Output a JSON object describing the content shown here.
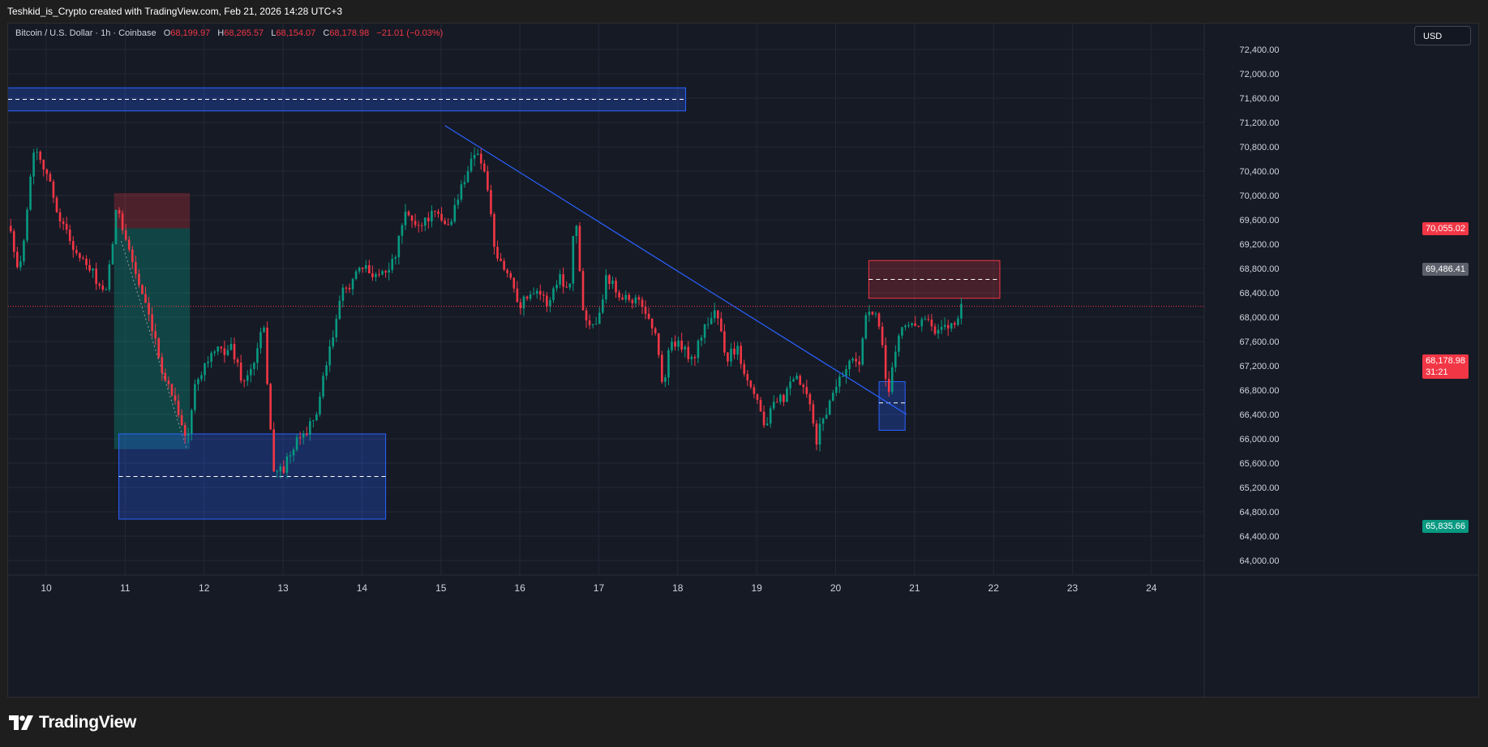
{
  "header": {
    "attribution": "Teshkid_is_Crypto created with TradingView.com, Feb 21, 2026 14:28 UTC+3"
  },
  "legend": {
    "symbol": "Bitcoin / U.S. Dollar · 1h · Coinbase",
    "open_label": "O",
    "open": "68,199.97",
    "high_label": "H",
    "high": "68,265.57",
    "low_label": "L",
    "low": "68,154.07",
    "close_label": "C",
    "close": "68,178.98",
    "change": "−21.01 (−0.03%)"
  },
  "currency_button": "USD",
  "price_tags": {
    "tag_70055": "70,055.02",
    "tag_69486": "69,486.41",
    "current_price": "68,178.98",
    "countdown": "31:21",
    "tag_65835": "65,835.66"
  },
  "footer": {
    "brand": "TradingView"
  },
  "colors": {
    "background": "#161a25",
    "grid": "#242836",
    "up": "#089981",
    "down": "#f23645",
    "zone_blue": "#2962ff",
    "zone_red": "#f23645",
    "trendline": "#2962ff",
    "tag_gray": "#5d606b",
    "tag_green": "#089981",
    "tag_red": "#f23645"
  },
  "chart_data": {
    "type": "candlestick",
    "symbol": "BTCUSD",
    "interval": "1h",
    "exchange": "Coinbase",
    "x_tick_labels": [
      "10",
      "11",
      "12",
      "13",
      "14",
      "15",
      "16",
      "17",
      "18",
      "19",
      "20",
      "21",
      "22",
      "23",
      "24"
    ],
    "y_tick_labels": [
      "72,400.00",
      "72,000.00",
      "71,600.00",
      "71,200.00",
      "70,800.00",
      "70,400.00",
      "70,000.00",
      "69,600.00",
      "69,200.00",
      "68,800.00",
      "68,400.00",
      "68,000.00",
      "67,600.00",
      "67,200.00",
      "66,800.00",
      "66,400.00",
      "66,000.00",
      "65,600.00",
      "65,200.00",
      "64,800.00",
      "64,400.00",
      "64,000.00"
    ],
    "ylim": [
      63800,
      72700
    ],
    "xlim_days": [
      9.5,
      24.5
    ],
    "path_anchors": [
      [
        9.55,
        69500
      ],
      [
        9.65,
        68600
      ],
      [
        9.85,
        70850
      ],
      [
        10.0,
        70400
      ],
      [
        10.15,
        69700
      ],
      [
        10.4,
        69000
      ],
      [
        10.6,
        68700
      ],
      [
        10.75,
        68300
      ],
      [
        10.9,
        69850
      ],
      [
        11.05,
        69100
      ],
      [
        11.25,
        68200
      ],
      [
        11.5,
        67000
      ],
      [
        11.65,
        66600
      ],
      [
        11.78,
        65900
      ],
      [
        11.9,
        67000
      ],
      [
        12.1,
        67400
      ],
      [
        12.35,
        67500
      ],
      [
        12.5,
        66900
      ],
      [
        12.65,
        67300
      ],
      [
        12.75,
        67900
      ],
      [
        12.82,
        66600
      ],
      [
        12.88,
        65450
      ],
      [
        13.0,
        65500
      ],
      [
        13.2,
        66000
      ],
      [
        13.4,
        66300
      ],
      [
        13.6,
        67500
      ],
      [
        13.75,
        68400
      ],
      [
        14.0,
        68800
      ],
      [
        14.2,
        68700
      ],
      [
        14.4,
        68900
      ],
      [
        14.55,
        69700
      ],
      [
        14.7,
        69500
      ],
      [
        14.9,
        69700
      ],
      [
        15.1,
        69500
      ],
      [
        15.3,
        70300
      ],
      [
        15.45,
        70800
      ],
      [
        15.6,
        70100
      ],
      [
        15.68,
        69000
      ],
      [
        15.75,
        68900
      ],
      [
        15.9,
        68600
      ],
      [
        16.0,
        68200
      ],
      [
        16.2,
        68500
      ],
      [
        16.35,
        68200
      ],
      [
        16.5,
        68700
      ],
      [
        16.62,
        68400
      ],
      [
        16.7,
        69800
      ],
      [
        16.78,
        68300
      ],
      [
        16.85,
        67900
      ],
      [
        17.0,
        68000
      ],
      [
        17.1,
        68700
      ],
      [
        17.25,
        68400
      ],
      [
        17.4,
        68300
      ],
      [
        17.55,
        68200
      ],
      [
        17.7,
        67800
      ],
      [
        17.78,
        67200
      ],
      [
        17.82,
        66800
      ],
      [
        17.9,
        67600
      ],
      [
        18.05,
        67500
      ],
      [
        18.2,
        67300
      ],
      [
        18.35,
        67900
      ],
      [
        18.5,
        68100
      ],
      [
        18.6,
        67300
      ],
      [
        18.75,
        67500
      ],
      [
        18.85,
        67100
      ],
      [
        19.0,
        66700
      ],
      [
        19.1,
        66200
      ],
      [
        19.2,
        66500
      ],
      [
        19.35,
        66700
      ],
      [
        19.5,
        67000
      ],
      [
        19.6,
        66800
      ],
      [
        19.7,
        66400
      ],
      [
        19.75,
        65900
      ],
      [
        19.82,
        66300
      ],
      [
        19.9,
        66500
      ],
      [
        20.0,
        66900
      ],
      [
        20.1,
        67100
      ],
      [
        20.2,
        67300
      ],
      [
        20.3,
        67300
      ],
      [
        20.4,
        68100
      ],
      [
        20.52,
        68000
      ],
      [
        20.6,
        67400
      ],
      [
        20.66,
        66700
      ],
      [
        20.72,
        67200
      ],
      [
        20.82,
        67800
      ],
      [
        20.95,
        67900
      ],
      [
        21.05,
        67900
      ],
      [
        21.15,
        68000
      ],
      [
        21.25,
        67700
      ],
      [
        21.35,
        67800
      ],
      [
        21.5,
        67900
      ],
      [
        21.6,
        68200
      ]
    ],
    "drawings": {
      "zones": [
        {
          "kind": "blue",
          "x": [
            9.5,
            18.1
          ],
          "y": [
            71770,
            71390
          ],
          "midline": 71580
        },
        {
          "kind": "blue",
          "x": [
            10.92,
            14.3
          ],
          "y": [
            66080,
            64680
          ],
          "midline": 65380
        },
        {
          "kind": "blue",
          "x": [
            20.55,
            20.88
          ],
          "y": [
            66940,
            66140
          ],
          "midline": 66590
        },
        {
          "kind": "red",
          "x": [
            20.42,
            22.08
          ],
          "y": [
            68930,
            68310
          ],
          "midline": 68620
        }
      ],
      "position": {
        "x": [
          10.86,
          11.82
        ],
        "entry": 69460,
        "stop": 70040,
        "target": 65830,
        "dotted_path": [
          [
            10.95,
            69250
          ],
          [
            11.78,
            65830
          ]
        ]
      },
      "trendline": [
        [
          15.05,
          71150
        ],
        [
          20.9,
          66400
        ]
      ],
      "current_price_line": 68178.98
    }
  }
}
